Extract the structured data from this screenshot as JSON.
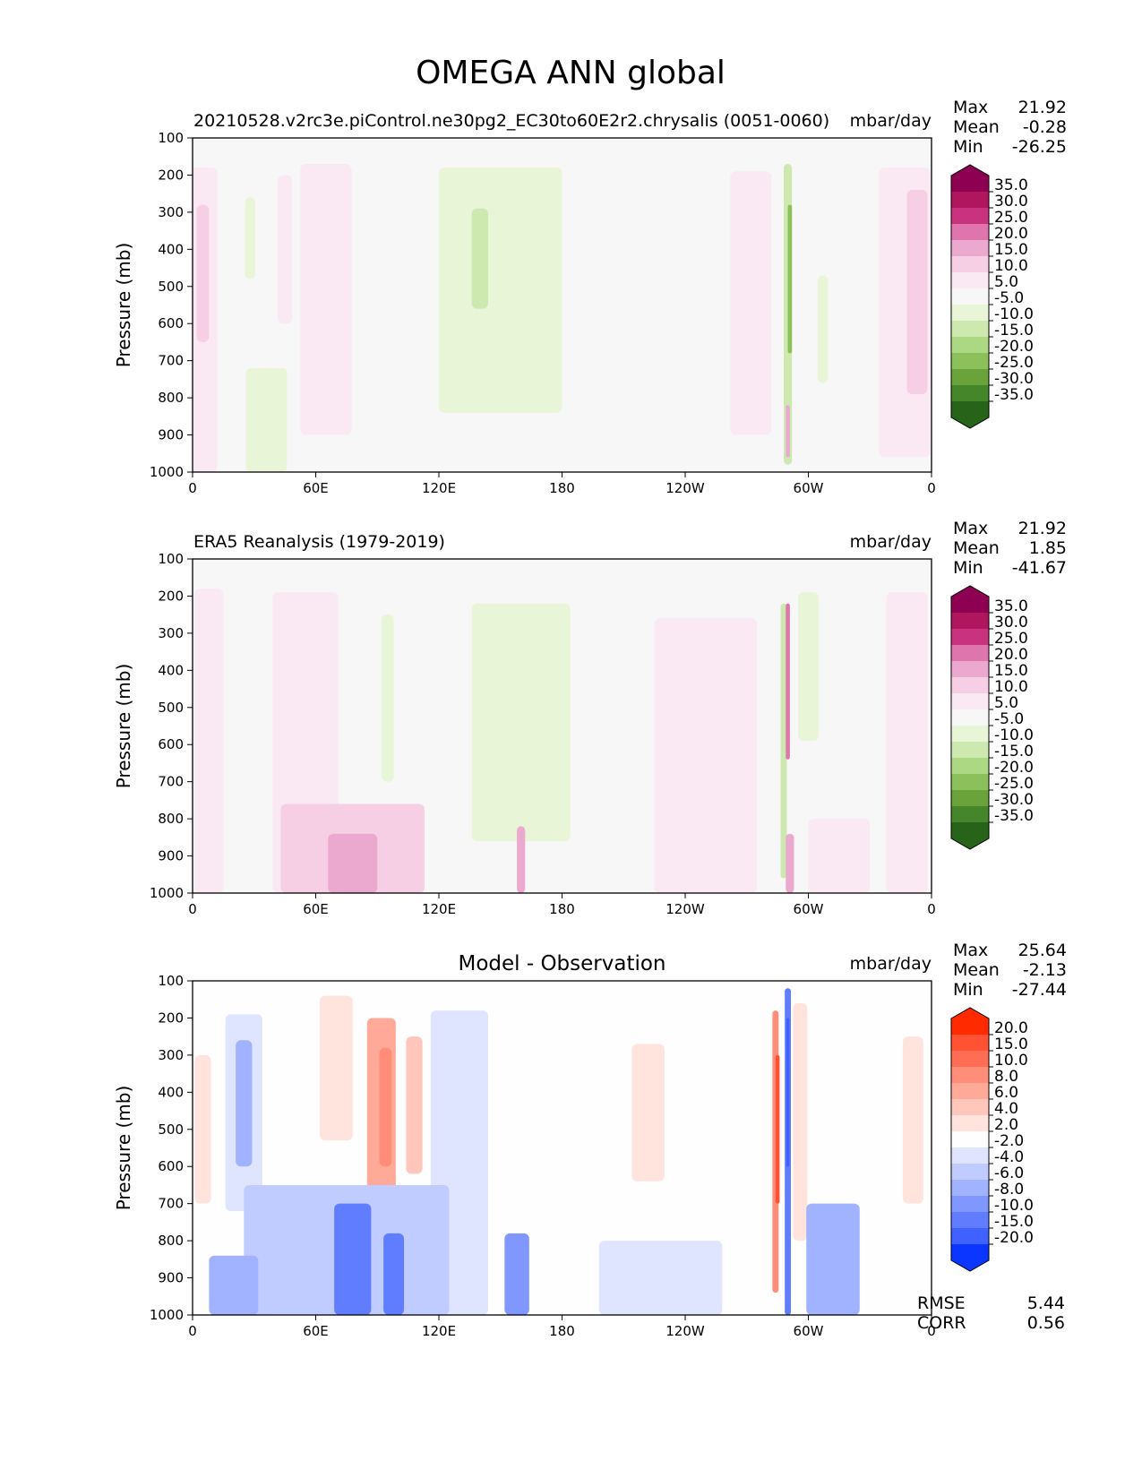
{
  "figure_title": "OMEGA ANN global",
  "icons": {
    "colorbar_extend_top": "triangle-up-icon",
    "colorbar_extend_bottom": "triangle-down-icon"
  },
  "chart_data": [
    {
      "type": "heatmap",
      "title": "20210528.v2rc3e.piControl.ne30pg2_EC30to60E2r2.chrysalis (0051-0060)",
      "units": "mbar/day",
      "ylabel": "Pressure (mb)",
      "xlabel": "",
      "xticks": [
        "0",
        "60E",
        "120E",
        "180",
        "120W",
        "60W",
        "0"
      ],
      "yticks": [
        "100",
        "200",
        "300",
        "400",
        "500",
        "600",
        "700",
        "800",
        "900",
        "1000"
      ],
      "xlim": [
        0,
        360
      ],
      "ylim": [
        1000,
        100
      ],
      "stats": [
        {
          "label": "Max",
          "value": "21.92"
        },
        {
          "label": "Mean",
          "value": "-0.28"
        },
        {
          "label": "Min",
          "value": "-26.25"
        }
      ],
      "colorbar": {
        "levels": [
          "35.0",
          "30.0",
          "25.0",
          "20.0",
          "15.0",
          "10.0",
          "5.0",
          "-5.0",
          "-10.0",
          "-15.0",
          "-20.0",
          "-25.0",
          "-30.0",
          "-35.0"
        ],
        "colors": [
          "#8e0152",
          "#b0165e",
          "#c8327e",
          "#df75ad",
          "#eca9cf",
          "#f6cfe5",
          "#fae9f3",
          "#f7f7f7",
          "#e8f5d6",
          "#cde9b0",
          "#acd884",
          "#8cc05a",
          "#69a339",
          "#46862a",
          "#276419"
        ]
      },
      "features": [
        {
          "lon": 5,
          "width": 14,
          "top": 180,
          "bottom": 1000,
          "value": 8
        },
        {
          "lon": 5,
          "width": 6,
          "top": 280,
          "bottom": 650,
          "value": 13
        },
        {
          "lon": 28,
          "width": 5,
          "top": 260,
          "bottom": 480,
          "value": -7
        },
        {
          "lon": 36,
          "width": 20,
          "top": 720,
          "bottom": 1000,
          "value": -7
        },
        {
          "lon": 45,
          "width": 7,
          "top": 200,
          "bottom": 600,
          "value": 7
        },
        {
          "lon": 65,
          "width": 25,
          "top": 170,
          "bottom": 900,
          "value": 7
        },
        {
          "lon": 150,
          "width": 60,
          "top": 180,
          "bottom": 840,
          "value": -7
        },
        {
          "lon": 140,
          "width": 8,
          "top": 290,
          "bottom": 560,
          "value": -12
        },
        {
          "lon": 272,
          "width": 20,
          "top": 190,
          "bottom": 900,
          "value": 7
        },
        {
          "lon": 290,
          "width": 4,
          "top": 170,
          "bottom": 980,
          "value": -12
        },
        {
          "lon": 291,
          "width": 2,
          "top": 280,
          "bottom": 680,
          "value": -22
        },
        {
          "lon": 290,
          "width": 2,
          "top": 820,
          "bottom": 960,
          "value": 17
        },
        {
          "lon": 307,
          "width": 5,
          "top": 470,
          "bottom": 760,
          "value": -7
        },
        {
          "lon": 347,
          "width": 25,
          "top": 180,
          "bottom": 960,
          "value": 8
        },
        {
          "lon": 353,
          "width": 10,
          "top": 240,
          "bottom": 790,
          "value": 12
        }
      ]
    },
    {
      "type": "heatmap",
      "title": "ERA5 Reanalysis (1979-2019)",
      "units": "mbar/day",
      "ylabel": "Pressure (mb)",
      "xlabel": "",
      "xticks": [
        "0",
        "60E",
        "120E",
        "180",
        "120W",
        "60W",
        "0"
      ],
      "yticks": [
        "100",
        "200",
        "300",
        "400",
        "500",
        "600",
        "700",
        "800",
        "900",
        "1000"
      ],
      "xlim": [
        0,
        360
      ],
      "ylim": [
        1000,
        100
      ],
      "stats": [
        {
          "label": "Max",
          "value": "21.92"
        },
        {
          "label": "Mean",
          "value": "1.85"
        },
        {
          "label": "Min",
          "value": "-41.67"
        }
      ],
      "colorbar": {
        "levels": [
          "35.0",
          "30.0",
          "25.0",
          "20.0",
          "15.0",
          "10.0",
          "5.0",
          "-5.0",
          "-10.0",
          "-15.0",
          "-20.0",
          "-25.0",
          "-30.0",
          "-35.0"
        ],
        "colors": [
          "#8e0152",
          "#b0165e",
          "#c8327e",
          "#df75ad",
          "#eca9cf",
          "#f6cfe5",
          "#fae9f3",
          "#f7f7f7",
          "#e8f5d6",
          "#cde9b0",
          "#acd884",
          "#8cc05a",
          "#69a339",
          "#46862a",
          "#276419"
        ]
      },
      "features": [
        {
          "lon": 8,
          "width": 14,
          "top": 180,
          "bottom": 1000,
          "value": 7
        },
        {
          "lon": 55,
          "width": 32,
          "top": 190,
          "bottom": 1000,
          "value": 7
        },
        {
          "lon": 95,
          "width": 6,
          "top": 250,
          "bottom": 700,
          "value": -7
        },
        {
          "lon": 160,
          "width": 48,
          "top": 220,
          "bottom": 860,
          "value": -7
        },
        {
          "lon": 78,
          "width": 70,
          "top": 760,
          "bottom": 1000,
          "value": 12
        },
        {
          "lon": 78,
          "width": 24,
          "top": 840,
          "bottom": 1000,
          "value": 17
        },
        {
          "lon": 160,
          "width": 4,
          "top": 820,
          "bottom": 1000,
          "value": 17
        },
        {
          "lon": 250,
          "width": 50,
          "top": 260,
          "bottom": 1000,
          "value": 7
        },
        {
          "lon": 288,
          "width": 3,
          "top": 220,
          "bottom": 960,
          "value": -12
        },
        {
          "lon": 290,
          "width": 2,
          "top": 220,
          "bottom": 640,
          "value": 22
        },
        {
          "lon": 291,
          "width": 4,
          "top": 840,
          "bottom": 1000,
          "value": 17
        },
        {
          "lon": 300,
          "width": 10,
          "top": 190,
          "bottom": 590,
          "value": -7
        },
        {
          "lon": 315,
          "width": 30,
          "top": 800,
          "bottom": 1000,
          "value": 8
        },
        {
          "lon": 348,
          "width": 20,
          "top": 190,
          "bottom": 1000,
          "value": 8
        }
      ]
    },
    {
      "type": "heatmap",
      "title": "Model - Observation",
      "units": "mbar/day",
      "ylabel": "Pressure (mb)",
      "xlabel": "",
      "xticks": [
        "0",
        "60E",
        "120E",
        "180",
        "120W",
        "60W",
        "0"
      ],
      "yticks": [
        "100",
        "200",
        "300",
        "400",
        "500",
        "600",
        "700",
        "800",
        "900",
        "1000"
      ],
      "xlim": [
        0,
        360
      ],
      "ylim": [
        1000,
        100
      ],
      "stats": [
        {
          "label": "Max",
          "value": "25.64"
        },
        {
          "label": "Mean",
          "value": "-2.13"
        },
        {
          "label": "Min",
          "value": "-27.44"
        }
      ],
      "metrics": [
        {
          "label": "RMSE",
          "value": "5.44"
        },
        {
          "label": "CORR",
          "value": "0.56"
        }
      ],
      "colorbar": {
        "levels": [
          "20.0",
          "15.0",
          "10.0",
          "8.0",
          "6.0",
          "4.0",
          "2.0",
          "-2.0",
          "-4.0",
          "-6.0",
          "-8.0",
          "-10.0",
          "-15.0",
          "-20.0"
        ],
        "colors": [
          "#ff2a00",
          "#ff5233",
          "#ff6e54",
          "#ff8d78",
          "#ffaa99",
          "#ffc7bb",
          "#ffe3dd",
          "#fefefe",
          "#dfe5fe",
          "#c0ccff",
          "#a1b2ff",
          "#8097ff",
          "#607dff",
          "#3f61ff",
          "#0a36ff"
        ]
      },
      "features": [
        {
          "lon": 5,
          "width": 8,
          "top": 300,
          "bottom": 700,
          "value": 3
        },
        {
          "lon": 25,
          "width": 18,
          "top": 190,
          "bottom": 720,
          "value": -3
        },
        {
          "lon": 25,
          "width": 8,
          "top": 260,
          "bottom": 600,
          "value": -7
        },
        {
          "lon": 70,
          "width": 16,
          "top": 140,
          "bottom": 530,
          "value": 3
        },
        {
          "lon": 92,
          "width": 14,
          "top": 200,
          "bottom": 700,
          "value": 7
        },
        {
          "lon": 94,
          "width": 6,
          "top": 280,
          "bottom": 600,
          "value": 9
        },
        {
          "lon": 108,
          "width": 8,
          "top": 250,
          "bottom": 620,
          "value": 5
        },
        {
          "lon": 130,
          "width": 28,
          "top": 180,
          "bottom": 1000,
          "value": -3
        },
        {
          "lon": 75,
          "width": 100,
          "top": 650,
          "bottom": 1000,
          "value": -5
        },
        {
          "lon": 78,
          "width": 18,
          "top": 700,
          "bottom": 1000,
          "value": -12
        },
        {
          "lon": 98,
          "width": 10,
          "top": 780,
          "bottom": 1000,
          "value": -12
        },
        {
          "lon": 158,
          "width": 12,
          "top": 780,
          "bottom": 1000,
          "value": -9
        },
        {
          "lon": 20,
          "width": 24,
          "top": 840,
          "bottom": 1000,
          "value": -7
        },
        {
          "lon": 228,
          "width": 60,
          "top": 800,
          "bottom": 1000,
          "value": -3
        },
        {
          "lon": 222,
          "width": 16,
          "top": 270,
          "bottom": 640,
          "value": 3
        },
        {
          "lon": 284,
          "width": 3,
          "top": 180,
          "bottom": 940,
          "value": 9
        },
        {
          "lon": 285,
          "width": 2,
          "top": 300,
          "bottom": 700,
          "value": 18
        },
        {
          "lon": 290,
          "width": 3,
          "top": 120,
          "bottom": 1000,
          "value": -11
        },
        {
          "lon": 290,
          "width": 1.5,
          "top": 200,
          "bottom": 600,
          "value": -17
        },
        {
          "lon": 296,
          "width": 7,
          "top": 160,
          "bottom": 800,
          "value": 3
        },
        {
          "lon": 312,
          "width": 26,
          "top": 700,
          "bottom": 1000,
          "value": -7
        },
        {
          "lon": 351,
          "width": 10,
          "top": 250,
          "bottom": 700,
          "value": 3
        }
      ]
    }
  ]
}
